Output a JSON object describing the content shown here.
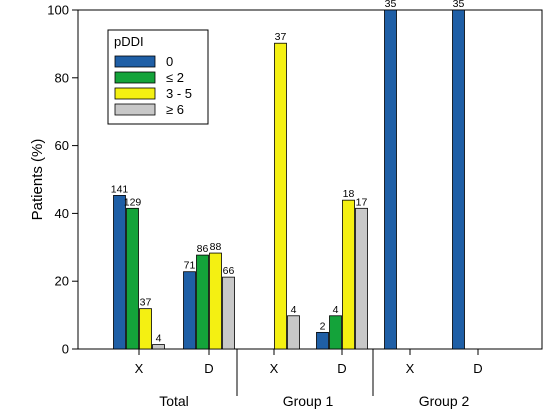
{
  "chart_data": {
    "type": "bar",
    "ylabel": "Patients (%)",
    "ylim": [
      0,
      100
    ],
    "yticks": [
      0,
      20,
      40,
      60,
      80,
      100
    ],
    "legend": {
      "title": "pDDI",
      "position": "top-left",
      "entries": [
        {
          "label": "0",
          "color": "#1f5fa6"
        },
        {
          "label": "≤ 2",
          "color": "#14a33a"
        },
        {
          "label": "3 - 5",
          "color": "#f4f012"
        },
        {
          "label": "≥ 6",
          "color": "#c8c8c8"
        }
      ]
    },
    "groups": [
      {
        "label": "Total",
        "categories": [
          {
            "label": "X",
            "values": [
              45.3,
              41.5,
              11.9,
              1.3
            ],
            "counts": [
              "141",
              "129",
              "37",
              "4"
            ]
          },
          {
            "label": "D",
            "values": [
              22.8,
              27.7,
              28.3,
              21.2
            ],
            "counts": [
              "71",
              "86",
              "88",
              "66"
            ]
          }
        ]
      },
      {
        "label": "Group 1",
        "categories": [
          {
            "label": "X",
            "values": [
              null,
              null,
              90.2,
              9.8
            ],
            "counts": [
              null,
              null,
              "37",
              "4"
            ]
          },
          {
            "label": "D",
            "values": [
              4.9,
              9.8,
              43.9,
              41.5
            ],
            "counts": [
              "2",
              "4",
              "18",
              "17"
            ]
          }
        ]
      },
      {
        "label": "Group 2",
        "categories": [
          {
            "label": "X",
            "values": [
              100,
              null,
              null,
              null
            ],
            "counts": [
              "35",
              null,
              null,
              null
            ]
          },
          {
            "label": "D",
            "values": [
              100,
              null,
              null,
              null
            ],
            "counts": [
              "35",
              null,
              null,
              null
            ]
          }
        ]
      }
    ]
  }
}
